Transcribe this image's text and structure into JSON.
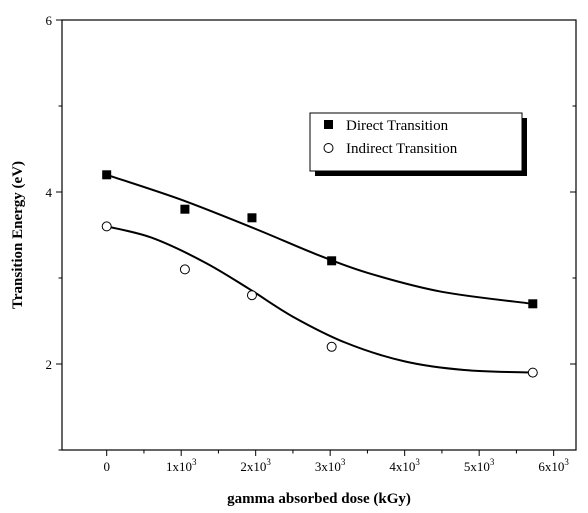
{
  "chart_data": {
    "type": "scatter",
    "xlabel": "gamma absorbed dose (kGy)",
    "ylabel": "Transition Energy (eV)",
    "xlim": [
      -600,
      6300
    ],
    "ylim": [
      1,
      6
    ],
    "x_ticks": [
      {
        "value": 0,
        "label": "0",
        "exp": ""
      },
      {
        "value": 1000,
        "label": "1x10",
        "exp": "3"
      },
      {
        "value": 2000,
        "label": "2x10",
        "exp": "3"
      },
      {
        "value": 3000,
        "label": "3x10",
        "exp": "3"
      },
      {
        "value": 4000,
        "label": "4x10",
        "exp": "3"
      },
      {
        "value": 5000,
        "label": "5x10",
        "exp": "3"
      },
      {
        "value": 6000,
        "label": "6x10",
        "exp": "3"
      }
    ],
    "y_ticks": [
      {
        "value": 2,
        "label": "2"
      },
      {
        "value": 4,
        "label": "4"
      },
      {
        "value": 6,
        "label": "6"
      }
    ],
    "y_minor_ticks": [
      1,
      3,
      5
    ],
    "legend_position": "top-right",
    "series": [
      {
        "name": "Direct Transition",
        "marker": "filled-square",
        "color": "#000000",
        "points": [
          {
            "x": 0,
            "y": 4.2
          },
          {
            "x": 1050,
            "y": 3.8
          },
          {
            "x": 1950,
            "y": 3.7
          },
          {
            "x": 3020,
            "y": 3.2
          },
          {
            "x": 5720,
            "y": 2.7
          }
        ],
        "fit": [
          [
            0,
            4.2
          ],
          [
            1000,
            3.91
          ],
          [
            2000,
            3.57
          ],
          [
            2800,
            3.28
          ],
          [
            3500,
            3.06
          ],
          [
            4500,
            2.84
          ],
          [
            5720,
            2.7
          ]
        ]
      },
      {
        "name": "Indirect Transition",
        "marker": "open-circle",
        "color": "#000000",
        "points": [
          {
            "x": 0,
            "y": 3.6
          },
          {
            "x": 1050,
            "y": 3.1
          },
          {
            "x": 1950,
            "y": 2.8
          },
          {
            "x": 3020,
            "y": 2.2
          },
          {
            "x": 5720,
            "y": 1.9
          }
        ],
        "fit": [
          [
            0,
            3.6
          ],
          [
            600,
            3.47
          ],
          [
            1300,
            3.19
          ],
          [
            1900,
            2.88
          ],
          [
            2500,
            2.55
          ],
          [
            3200,
            2.25
          ],
          [
            4000,
            2.03
          ],
          [
            4800,
            1.93
          ],
          [
            5720,
            1.9
          ]
        ]
      }
    ]
  }
}
